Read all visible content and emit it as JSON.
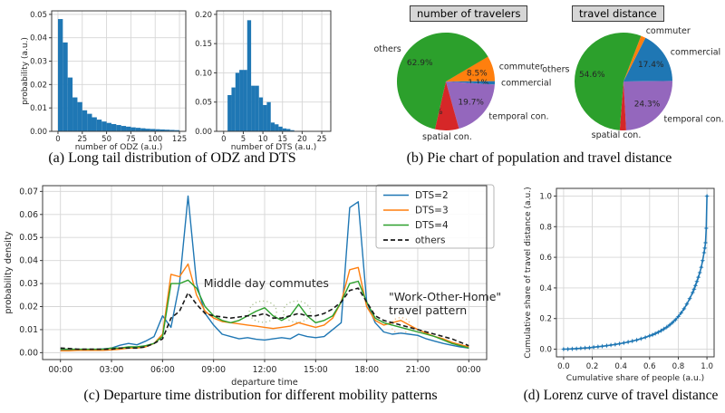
{
  "captions": {
    "a": "(a) Long tail distribution of ODZ and DTS",
    "b": "(b) Pie chart of population and travel distance",
    "c": "(c) Departure time distribution for different mobility patterns",
    "d": "(d) Lorenz curve of travel distance"
  },
  "colors": {
    "bar_blue": "#1f77b4",
    "orange": "#ff7f0e",
    "green": "#2ca02c",
    "red": "#d62728",
    "purple": "#9467bd",
    "annotation_green": "#7f9c5f",
    "annotation_orange": "#e0882f"
  },
  "chart_data": [
    {
      "id": "odz_hist",
      "type": "bar",
      "xlabel": "number of ODZ (a.u.)",
      "ylabel": "probability (a.u.)",
      "xticks": [
        0,
        25,
        50,
        75,
        100,
        125
      ],
      "xtick_labels": [
        "0",
        "25",
        "50",
        "75",
        "100",
        "125"
      ],
      "yticks": [
        0,
        0.01,
        0.02,
        0.03,
        0.04,
        0.05
      ],
      "ytick_labels": [
        "0.00",
        "0.01",
        "0.02",
        "0.03",
        "0.04",
        "0.05"
      ],
      "bin_start": 0,
      "bin_width": 5,
      "values": [
        0.048,
        0.038,
        0.023,
        0.0145,
        0.0125,
        0.009,
        0.0075,
        0.006,
        0.005,
        0.0042,
        0.0036,
        0.0031,
        0.0027,
        0.0023,
        0.002,
        0.0017,
        0.0015,
        0.0013,
        0.0011,
        0.001,
        0.0009,
        0.0008,
        0.0007,
        0.0006,
        0.0005
      ],
      "color": "#1f77b4",
      "grid": true
    },
    {
      "id": "dts_hist",
      "type": "bar",
      "xlabel": "number of DTS (a.u.)",
      "ylabel": "",
      "xticks": [
        0,
        5,
        10,
        15,
        20,
        25
      ],
      "xtick_labels": [
        "0",
        "5",
        "10",
        "15",
        "20",
        "25"
      ],
      "yticks": [
        0,
        0.05,
        0.1,
        0.15,
        0.2
      ],
      "ytick_labels": [
        "0.00",
        "0.05",
        "0.10",
        "0.15",
        "0.20"
      ],
      "bin_start": 1,
      "bin_width": 1,
      "values": [
        0.062,
        0.075,
        0.1,
        0.105,
        0.105,
        0.19,
        0.078,
        0.078,
        0.058,
        0.045,
        0.05,
        0.015,
        0.012,
        0.008,
        0.005,
        0.004,
        0.002
      ],
      "color": "#1f77b4",
      "grid": true
    },
    {
      "id": "travelers_pie",
      "type": "pie",
      "title": "number of travelers",
      "start_angle": 31,
      "slices": [
        {
          "label": "commuter",
          "pct": 8.5,
          "pct_label": "8.5%",
          "color": "#ff7f0e"
        },
        {
          "label": "commercial",
          "pct": 1.1,
          "pct_label": "1.1%",
          "color": "#1f77b4"
        },
        {
          "label": "temporal con.",
          "pct": 19.7,
          "pct_label": "19.7%",
          "color": "#9467bd"
        },
        {
          "label": "spatial con.",
          "pct": 7.9,
          "pct_label": "7.9%",
          "color": "#d62728"
        },
        {
          "label": "others",
          "pct": 62.9,
          "pct_label": "62.9%",
          "color": "#2ca02c"
        }
      ]
    },
    {
      "id": "distance_pie",
      "type": "pie",
      "title": "travel distance",
      "start_angle": 69,
      "slices": [
        {
          "label": "commuter",
          "pct": 1.6,
          "pct_label": "1.6%",
          "color": "#ff7f0e"
        },
        {
          "label": "commercial",
          "pct": 17.4,
          "pct_label": "17.4%",
          "color": "#1f77b4"
        },
        {
          "label": "temporal con.",
          "pct": 24.3,
          "pct_label": "24.3%",
          "color": "#9467bd"
        },
        {
          "label": "spatial con.",
          "pct": 2.1,
          "pct_label": "2.1%",
          "color": "#d62728"
        },
        {
          "label": "others",
          "pct": 54.6,
          "pct_label": "54.6%",
          "color": "#2ca02c"
        }
      ]
    },
    {
      "id": "departure",
      "type": "line",
      "xlabel": "departure time",
      "ylabel": "probability density",
      "xticks": [
        0,
        3,
        6,
        9,
        12,
        15,
        18,
        21,
        24
      ],
      "xtick_labels": [
        "00:00",
        "03:00",
        "06:00",
        "09:00",
        "12:00",
        "15:00",
        "18:00",
        "21:00",
        "00:00"
      ],
      "yticks": [
        0,
        0.01,
        0.02,
        0.03,
        0.04,
        0.05,
        0.06,
        0.07
      ],
      "ytick_labels": [
        "0.00",
        "0.01",
        "0.02",
        "0.03",
        "0.04",
        "0.05",
        "0.06",
        "0.07"
      ],
      "t_start": 0,
      "t_step": 0.5,
      "series": [
        {
          "name": "DTS=2",
          "color": "#1f77b4",
          "dashed": false,
          "values": [
            0.001,
            0.001,
            0.0012,
            0.001,
            0.0013,
            0.0016,
            0.002,
            0.0032,
            0.004,
            0.0034,
            0.005,
            0.007,
            0.016,
            0.011,
            0.03,
            0.068,
            0.03,
            0.017,
            0.012,
            0.008,
            0.007,
            0.006,
            0.0065,
            0.0058,
            0.0055,
            0.006,
            0.0065,
            0.006,
            0.008,
            0.007,
            0.0065,
            0.007,
            0.01,
            0.013,
            0.063,
            0.0655,
            0.022,
            0.013,
            0.009,
            0.008,
            0.0085,
            0.008,
            0.0075,
            0.006,
            0.005,
            0.004,
            0.0032,
            0.0025,
            0.002
          ]
        },
        {
          "name": "DTS=3",
          "color": "#ff7f0e",
          "dashed": false,
          "values": [
            0.0008,
            0.0008,
            0.001,
            0.001,
            0.001,
            0.001,
            0.0012,
            0.0015,
            0.002,
            0.002,
            0.0025,
            0.004,
            0.008,
            0.034,
            0.033,
            0.0385,
            0.025,
            0.018,
            0.015,
            0.0135,
            0.013,
            0.0125,
            0.012,
            0.0115,
            0.011,
            0.0105,
            0.011,
            0.0115,
            0.013,
            0.012,
            0.011,
            0.012,
            0.015,
            0.022,
            0.036,
            0.037,
            0.02,
            0.014,
            0.012,
            0.013,
            0.014,
            0.012,
            0.01,
            0.0085,
            0.007,
            0.006,
            0.0045,
            0.0035,
            0.0025
          ]
        },
        {
          "name": "DTS=4",
          "color": "#2ca02c",
          "dashed": false,
          "values": [
            0.0015,
            0.0015,
            0.0015,
            0.0015,
            0.0015,
            0.0015,
            0.002,
            0.002,
            0.0025,
            0.0025,
            0.003,
            0.004,
            0.007,
            0.03,
            0.03,
            0.0315,
            0.028,
            0.02,
            0.016,
            0.014,
            0.013,
            0.014,
            0.016,
            0.018,
            0.0195,
            0.016,
            0.014,
            0.016,
            0.021,
            0.016,
            0.013,
            0.014,
            0.016,
            0.022,
            0.03,
            0.031,
            0.022,
            0.015,
            0.013,
            0.012,
            0.011,
            0.01,
            0.009,
            0.008,
            0.007,
            0.0055,
            0.004,
            0.003,
            0.002
          ]
        },
        {
          "name": "others",
          "color": "#1a1a1a",
          "dashed": true,
          "values": [
            0.002,
            0.0018,
            0.0015,
            0.0015,
            0.0015,
            0.0015,
            0.0015,
            0.002,
            0.002,
            0.002,
            0.0025,
            0.004,
            0.006,
            0.015,
            0.018,
            0.026,
            0.021,
            0.017,
            0.016,
            0.0155,
            0.015,
            0.0155,
            0.016,
            0.016,
            0.017,
            0.015,
            0.015,
            0.016,
            0.017,
            0.016,
            0.016,
            0.017,
            0.019,
            0.022,
            0.027,
            0.028,
            0.022,
            0.016,
            0.014,
            0.013,
            0.012,
            0.011,
            0.01,
            0.009,
            0.008,
            0.007,
            0.006,
            0.0045,
            0.003
          ]
        }
      ],
      "legend_position": "top-right",
      "annotations": [
        {
          "text": "Middle day commutes",
          "color": "#7f9c5f",
          "x": 12.1,
          "y": 0.0285,
          "circle_color": "#a8c08c",
          "circles": [
            {
              "cx": 11.9,
              "cy": 0.0178,
              "rx": 0.8,
              "ry": 0.0046
            },
            {
              "cx": 13.9,
              "cy": 0.0178,
              "rx": 0.8,
              "ry": 0.0046
            }
          ]
        },
        {
          "text": "\"Work-Other-Home\"\ntravel pattern",
          "color": "#e0882f",
          "x": 19.3,
          "y": 0.0226,
          "circle_color": "#edb87f",
          "circles": [
            {
              "cx": 20.0,
              "cy": 0.0118,
              "rx": 0.55,
              "ry": 0.0034
            }
          ]
        }
      ]
    },
    {
      "id": "lorenz",
      "type": "line-scatter",
      "xlabel": "Cumulative share of people (a.u.)",
      "ylabel": "Cumulative share of travel distance (a.u.)",
      "xticks": [
        0,
        0.2,
        0.4,
        0.6,
        0.8,
        1.0
      ],
      "xtick_labels": [
        "0.0",
        "0.2",
        "0.4",
        "0.6",
        "0.8",
        "1.0"
      ],
      "yticks": [
        0,
        0.2,
        0.4,
        0.6,
        0.8,
        1.0
      ],
      "ytick_labels": [
        "0.0",
        "0.2",
        "0.4",
        "0.6",
        "0.8",
        "1.0"
      ],
      "x": [
        0,
        0.03,
        0.06,
        0.09,
        0.12,
        0.15,
        0.18,
        0.21,
        0.24,
        0.27,
        0.3,
        0.33,
        0.36,
        0.39,
        0.42,
        0.45,
        0.48,
        0.51,
        0.54,
        0.57,
        0.6,
        0.62,
        0.64,
        0.66,
        0.68,
        0.7,
        0.72,
        0.74,
        0.76,
        0.78,
        0.8,
        0.82,
        0.84,
        0.86,
        0.88,
        0.9,
        0.91,
        0.92,
        0.93,
        0.94,
        0.95,
        0.96,
        0.97,
        0.98,
        0.985,
        0.99,
        0.995,
        1.0
      ],
      "y": [
        0,
        0.001,
        0.002,
        0.004,
        0.006,
        0.008,
        0.01,
        0.013,
        0.016,
        0.019,
        0.023,
        0.027,
        0.031,
        0.036,
        0.041,
        0.047,
        0.053,
        0.06,
        0.068,
        0.077,
        0.087,
        0.094,
        0.102,
        0.111,
        0.121,
        0.132,
        0.144,
        0.158,
        0.174,
        0.192,
        0.213,
        0.237,
        0.264,
        0.295,
        0.33,
        0.37,
        0.392,
        0.416,
        0.442,
        0.47,
        0.5,
        0.535,
        0.578,
        0.63,
        0.66,
        0.695,
        0.79,
        1.0
      ],
      "color": "#1f77b4"
    }
  ]
}
